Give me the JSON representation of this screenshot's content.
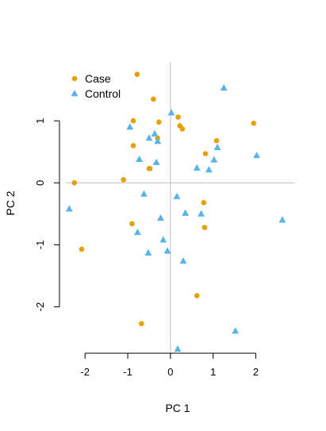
{
  "chart_data": {
    "type": "scatter",
    "xlabel": "PC 1",
    "ylabel": "PC 2",
    "xlim": [
      -2.45,
      2.9
    ],
    "ylim": [
      -2.85,
      1.95
    ],
    "xticks": [
      -2,
      -1,
      0,
      1,
      2
    ],
    "yticks": [
      -2,
      -1,
      0,
      1
    ],
    "reference_lines": {
      "x": 0,
      "y": 0
    },
    "grid": false,
    "legend": {
      "placement": "top-left"
    },
    "series": [
      {
        "name": "Case",
        "marker": "circle",
        "color": "#E69F00",
        "points": [
          {
            "x": -0.78,
            "y": 1.75
          },
          {
            "x": -0.4,
            "y": 1.35
          },
          {
            "x": -0.87,
            "y": 1.0
          },
          {
            "x": -0.27,
            "y": 0.98
          },
          {
            "x": 0.18,
            "y": 1.06
          },
          {
            "x": 0.22,
            "y": 0.92
          },
          {
            "x": 0.28,
            "y": 0.87
          },
          {
            "x": 1.95,
            "y": 0.96
          },
          {
            "x": 1.08,
            "y": 0.68
          },
          {
            "x": -0.3,
            "y": 0.72
          },
          {
            "x": -0.87,
            "y": 0.6
          },
          {
            "x": 0.82,
            "y": 0.47
          },
          {
            "x": -0.48,
            "y": 0.23
          },
          {
            "x": -0.5,
            "y": 0.23
          },
          {
            "x": -1.1,
            "y": 0.05
          },
          {
            "x": -2.25,
            "y": 0.0
          },
          {
            "x": 0.78,
            "y": -0.32
          },
          {
            "x": -0.9,
            "y": -0.66
          },
          {
            "x": 0.8,
            "y": -0.72
          },
          {
            "x": -2.08,
            "y": -1.07
          },
          {
            "x": 0.62,
            "y": -1.82
          },
          {
            "x": -0.68,
            "y": -2.27
          }
        ]
      },
      {
        "name": "Control",
        "marker": "triangle",
        "color": "#56B4E9",
        "points": [
          {
            "x": 1.25,
            "y": 1.53
          },
          {
            "x": 0.02,
            "y": 1.13
          },
          {
            "x": -0.95,
            "y": 0.9
          },
          {
            "x": -0.37,
            "y": 0.79
          },
          {
            "x": -0.5,
            "y": 0.72
          },
          {
            "x": -0.3,
            "y": 0.67
          },
          {
            "x": 1.1,
            "y": 0.57
          },
          {
            "x": 2.02,
            "y": 0.44
          },
          {
            "x": -0.73,
            "y": 0.38
          },
          {
            "x": 1.02,
            "y": 0.37
          },
          {
            "x": -0.33,
            "y": 0.33
          },
          {
            "x": 0.62,
            "y": 0.24
          },
          {
            "x": 0.9,
            "y": 0.21
          },
          {
            "x": -0.62,
            "y": -0.18
          },
          {
            "x": 0.15,
            "y": -0.22
          },
          {
            "x": -2.37,
            "y": -0.42
          },
          {
            "x": 0.35,
            "y": -0.49
          },
          {
            "x": 0.72,
            "y": -0.5
          },
          {
            "x": -0.23,
            "y": -0.57
          },
          {
            "x": 2.62,
            "y": -0.6
          },
          {
            "x": -0.77,
            "y": -0.8
          },
          {
            "x": -0.17,
            "y": -0.92
          },
          {
            "x": -0.07,
            "y": -1.1
          },
          {
            "x": -0.52,
            "y": -1.13
          },
          {
            "x": 0.3,
            "y": -1.26
          },
          {
            "x": 1.52,
            "y": -2.39
          },
          {
            "x": 0.17,
            "y": -2.68
          }
        ]
      }
    ]
  }
}
